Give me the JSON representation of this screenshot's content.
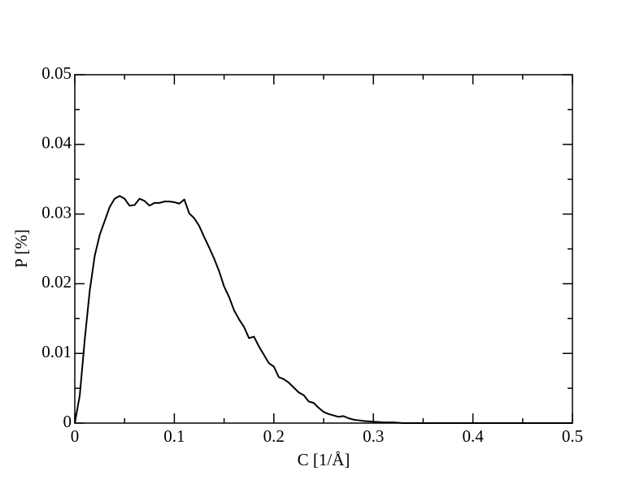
{
  "chart_data": {
    "type": "line",
    "xlabel": "C [1/Å]",
    "ylabel": "P [%]",
    "xlim": [
      0,
      0.5
    ],
    "ylim": [
      0,
      0.05
    ],
    "xticks": [
      0,
      0.1,
      0.2,
      0.3,
      0.4,
      0.5
    ],
    "yticks": [
      0,
      0.01,
      0.02,
      0.03,
      0.04,
      0.05
    ],
    "xminorticks": [
      0.05,
      0.15,
      0.25,
      0.35,
      0.45
    ],
    "yminorticks": [
      0.005,
      0.015,
      0.025,
      0.035,
      0.045
    ],
    "series": [
      {
        "color": "#000000",
        "x": [
          0,
          0.005,
          0.01,
          0.015,
          0.02,
          0.025,
          0.03,
          0.035,
          0.04,
          0.045,
          0.05,
          0.055,
          0.06,
          0.065,
          0.07,
          0.075,
          0.08,
          0.085,
          0.09,
          0.095,
          0.1,
          0.105,
          0.11,
          0.115,
          0.12,
          0.125,
          0.13,
          0.135,
          0.14,
          0.145,
          0.15,
          0.155,
          0.16,
          0.165,
          0.17,
          0.175,
          0.18,
          0.185,
          0.19,
          0.195,
          0.2,
          0.205,
          0.21,
          0.215,
          0.22,
          0.225,
          0.23,
          0.235,
          0.24,
          0.245,
          0.25,
          0.255,
          0.26,
          0.265,
          0.27,
          0.275,
          0.28,
          0.285,
          0.29,
          0.3,
          0.31,
          0.32,
          0.33,
          0.34,
          0.36,
          0.4,
          0.5
        ],
        "values": [
          0,
          0.004,
          0.012,
          0.019,
          0.024,
          0.027,
          0.029,
          0.031,
          0.0322,
          0.0326,
          0.0322,
          0.0312,
          0.0313,
          0.0322,
          0.0319,
          0.0312,
          0.0316,
          0.0316,
          0.0318,
          0.0318,
          0.0317,
          0.0315,
          0.0321,
          0.0301,
          0.0294,
          0.0283,
          0.0267,
          0.0252,
          0.0236,
          0.0218,
          0.0196,
          0.0181,
          0.0162,
          0.0149,
          0.0138,
          0.0122,
          0.0124,
          0.011,
          0.0098,
          0.0086,
          0.0081,
          0.0066,
          0.0063,
          0.0058,
          0.0051,
          0.0044,
          0.004,
          0.0031,
          0.0029,
          0.0022,
          0.0016,
          0.0013,
          0.0011,
          0.0009,
          0.001,
          0.0007,
          0.0005,
          0.0004,
          0.0003,
          0.0002,
          0.0001,
          0.0001,
          0,
          0,
          0,
          0,
          0
        ]
      }
    ]
  }
}
